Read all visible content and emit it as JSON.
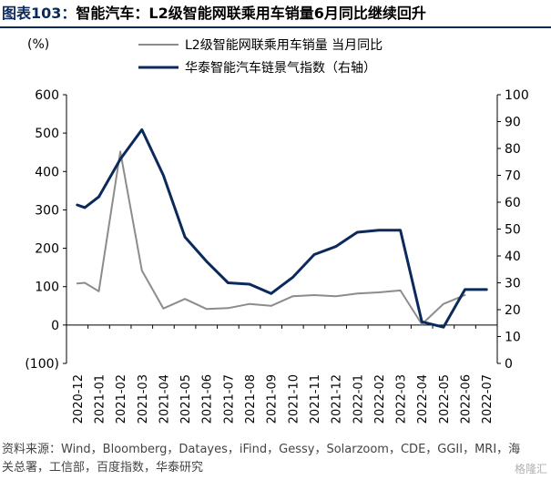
{
  "header": {
    "figure_label": "图表103：",
    "title": "智能汽车：L2级智能网联乘用车销量6月同比继续回升"
  },
  "footer": {
    "source": "资料来源：Wind，Bloomberg，Datayes，iFind，Gessy，Solarzoom，CDE，GGII，MRI，海关总署，工信部，百度指数，华泰研究",
    "watermark": "格隆汇"
  },
  "chart_data": {
    "type": "line",
    "title": "智能汽车：L2级智能网联乘用车销量6月同比继续回升",
    "left_axis_unit": "(%)",
    "categories": [
      "2020-12",
      "2021-01",
      "2021-02",
      "2021-03",
      "2021-04",
      "2021-05",
      "2021-06",
      "2021-07",
      "2021-08",
      "2021-09",
      "2021-10",
      "2021-11",
      "2021-12",
      "2022-01",
      "2022-02",
      "2022-03",
      "2022-04",
      "2022-05",
      "2022-06",
      "2022-07"
    ],
    "y_left": {
      "min": -100,
      "max": 600,
      "ticks": [
        -100,
        0,
        100,
        200,
        300,
        400,
        500,
        600
      ],
      "tick_labels": [
        "(100)",
        "0",
        "100",
        "200",
        "300",
        "400",
        "500",
        "600"
      ]
    },
    "y_right": {
      "min": 0,
      "max": 100,
      "ticks": [
        0,
        10,
        20,
        30,
        40,
        50,
        60,
        70,
        80,
        90,
        100
      ],
      "tick_labels": [
        "0",
        "10",
        "20",
        "30",
        "40",
        "50",
        "60",
        "70",
        "80",
        "90",
        "100"
      ]
    },
    "legend_position": "top",
    "series": [
      {
        "name": "L2级智能网联乘用车销量 当月同比",
        "axis": "left",
        "color": "#8c8c8c",
        "points": [
          [
            0,
            108
          ],
          [
            0.35,
            110
          ],
          [
            1,
            88
          ],
          [
            2,
            452
          ],
          [
            3,
            142
          ],
          [
            4,
            43
          ],
          [
            5,
            68
          ],
          [
            6,
            42
          ],
          [
            7,
            44
          ],
          [
            8,
            55
          ],
          [
            9,
            50
          ],
          [
            10,
            75
          ],
          [
            11,
            78
          ],
          [
            12,
            75
          ],
          [
            13,
            82
          ],
          [
            14,
            85
          ],
          [
            15,
            90
          ],
          [
            16,
            2
          ],
          [
            17,
            55
          ],
          [
            18,
            78
          ]
        ]
      },
      {
        "name": "华泰智能汽车链景气指数（右轴）",
        "axis": "right",
        "color": "#0b2a5b",
        "points": [
          [
            0,
            59
          ],
          [
            0.35,
            58
          ],
          [
            1,
            62
          ],
          [
            2,
            76
          ],
          [
            3,
            87
          ],
          [
            4,
            70
          ],
          [
            5,
            47
          ],
          [
            6,
            38
          ],
          [
            7,
            30
          ],
          [
            8,
            29.5
          ],
          [
            9,
            26
          ],
          [
            10,
            32
          ],
          [
            11,
            40.5
          ],
          [
            12,
            43.5
          ],
          [
            13,
            48.8
          ],
          [
            14,
            49.6
          ],
          [
            15,
            49.6
          ],
          [
            16,
            15.5
          ],
          [
            17,
            13.5
          ],
          [
            18,
            27.5
          ],
          [
            19,
            27.5
          ]
        ]
      }
    ]
  }
}
